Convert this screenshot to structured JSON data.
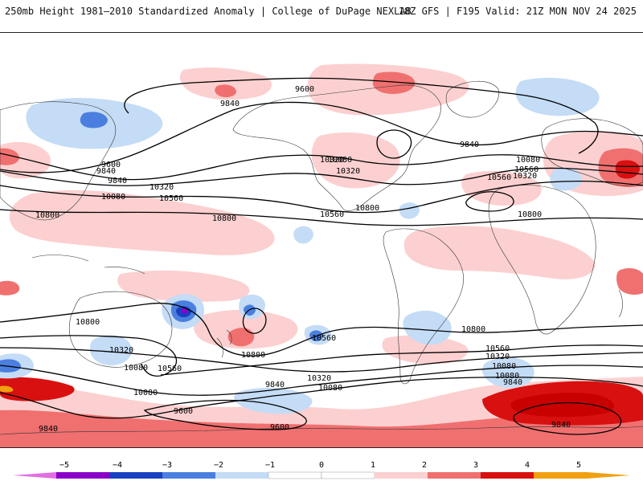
{
  "header": {
    "title": "250mb Height 1981–2010 Standardized Anomaly | College of DuPage NEXLAB",
    "run_info": "18Z GFS | F195 Valid: 21Z MON NOV 24 2025"
  },
  "colors": {
    "neg5": "#e070e0",
    "neg4": "#8a00c8",
    "neg3": "#1840c0",
    "neg2": "#4a7fe0",
    "neg1": "#c4dcf5",
    "zero": "#ffffff",
    "pos1": "#fcd0d0",
    "pos2": "#f07070",
    "pos3": "#d81010",
    "pos4": "#c80000",
    "pos5": "#f0a010"
  },
  "contours": [
    {
      "label": "9600"
    },
    {
      "label": "9840"
    },
    {
      "label": "9840"
    },
    {
      "label": "9600"
    },
    {
      "label": "10080"
    },
    {
      "label": "10320"
    },
    {
      "label": "10080"
    },
    {
      "label": "10560"
    },
    {
      "label": "10560"
    },
    {
      "label": "10800"
    },
    {
      "label": "10800"
    },
    {
      "label": "10800"
    },
    {
      "label": "10560"
    },
    {
      "label": "10800"
    },
    {
      "label": "10080"
    },
    {
      "label": "10320"
    },
    {
      "label": "10560"
    },
    {
      "label": "10800"
    },
    {
      "label": "9840"
    },
    {
      "label": "10320"
    },
    {
      "label": "10080"
    },
    {
      "label": "10560"
    },
    {
      "label": "10320"
    },
    {
      "label": "10080"
    },
    {
      "label": "9840"
    },
    {
      "label": "10800"
    },
    {
      "label": "10800"
    },
    {
      "label": "10560"
    },
    {
      "label": "10320"
    },
    {
      "label": "10080"
    },
    {
      "label": "9840"
    },
    {
      "label": "9600"
    },
    {
      "label": "9600"
    },
    {
      "label": "9840"
    },
    {
      "label": "9840"
    },
    {
      "label": "10080"
    },
    {
      "label": "10320"
    },
    {
      "label": "10560"
    },
    {
      "label": "9840"
    },
    {
      "label": "10080"
    },
    {
      "label": "10320"
    }
  ],
  "colorbar": {
    "ticks": [
      "−5",
      "−4",
      "−3",
      "−2",
      "−1",
      "0",
      "1",
      "2",
      "3",
      "4",
      "5"
    ]
  }
}
